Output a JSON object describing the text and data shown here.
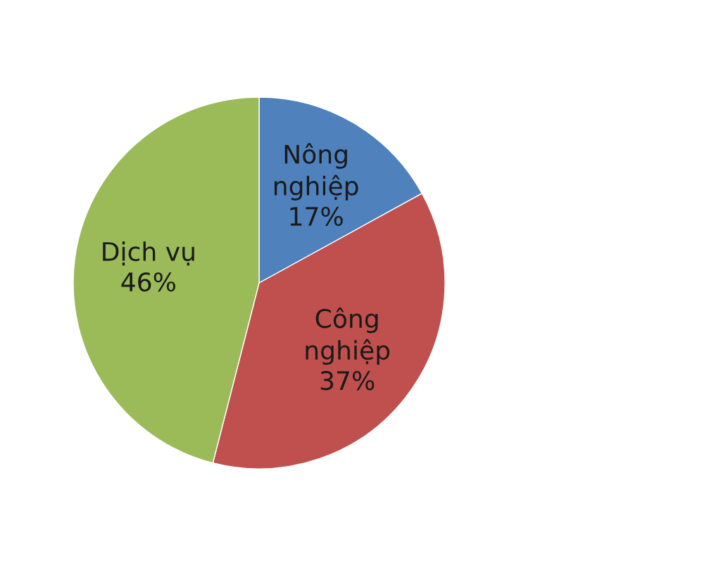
{
  "chart_data": {
    "type": "pie",
    "categories": [
      "Nông\nnghiệp",
      "Công\nnghiệp",
      "Dịch vụ"
    ],
    "values": [
      17,
      37,
      46
    ],
    "value_labels": [
      "17%",
      "37%",
      "46%"
    ],
    "colors": [
      "#4f81bd",
      "#c0504d",
      "#9bbb59"
    ],
    "legend": false
  }
}
